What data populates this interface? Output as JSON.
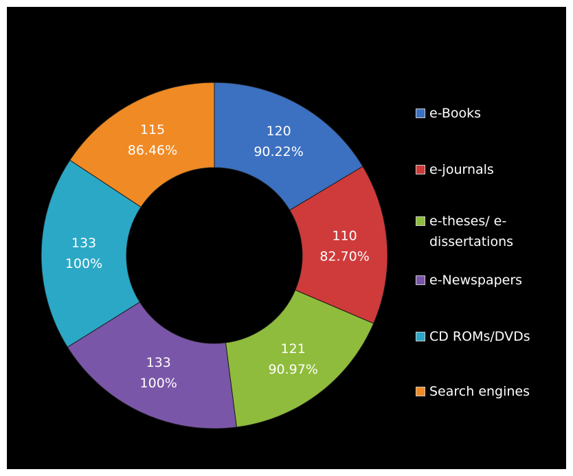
{
  "chart_data": {
    "type": "donut",
    "categories": [
      "e-Books",
      "e-journals",
      "e-theses/  e-dissertations",
      "e-Newspapers",
      "CD ROMs/DVDs",
      "Search engines"
    ],
    "values": [
      120,
      110,
      121,
      133,
      133,
      115
    ],
    "percentages": [
      90.22,
      82.7,
      90.97,
      100,
      100,
      86.46
    ],
    "percentage_labels": [
      "90.22%",
      "82.70%",
      "90.97%",
      "100%",
      "100%",
      "86.46%"
    ],
    "colors": [
      "#3c70c0",
      "#cf3b3b",
      "#8fbc3c",
      "#7a56a8",
      "#2ba8c6",
      "#f08a24"
    ],
    "legend": "right"
  }
}
